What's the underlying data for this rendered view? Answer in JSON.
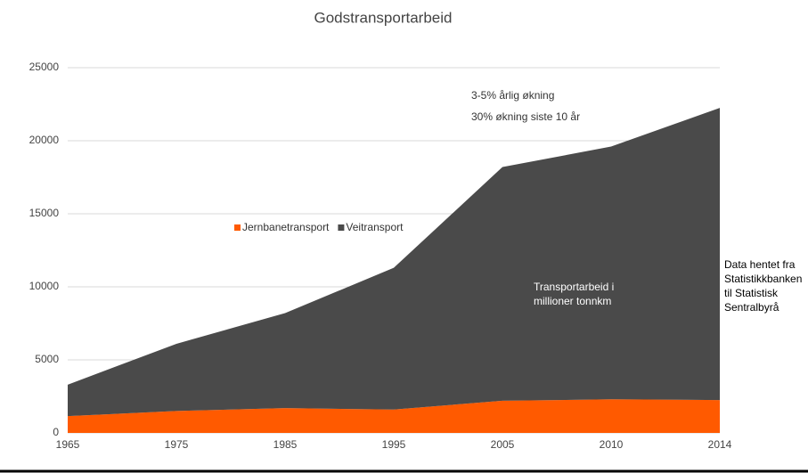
{
  "chart_data": {
    "type": "stacked_area",
    "title": "Godstransportarbeid",
    "categories": [
      "1965",
      "1975",
      "1985",
      "1995",
      "2005",
      "2010",
      "2014"
    ],
    "series": [
      {
        "name": "Jernbanetransport",
        "color": "#ff5a00",
        "values": [
          1150,
          1500,
          1700,
          1600,
          2200,
          2300,
          2250
        ]
      },
      {
        "name": "Veitransport",
        "color": "#4a4a4a",
        "values": [
          2150,
          4600,
          6500,
          9700,
          16000,
          17300,
          20000
        ]
      }
    ],
    "ylim": [
      0,
      25000
    ],
    "yticks": [
      0,
      5000,
      10000,
      15000,
      20000,
      25000
    ],
    "grid": true,
    "annotations": {
      "growth": [
        "3-5% årlig økning",
        "30% økning siste 10 år"
      ],
      "unit": [
        "Transportarbeid i",
        "millioner tonnkm"
      ],
      "source": [
        "Data hentet fra",
        "Statistikkbanken",
        "til Statistisk",
        "Sentralbyrå"
      ]
    }
  }
}
